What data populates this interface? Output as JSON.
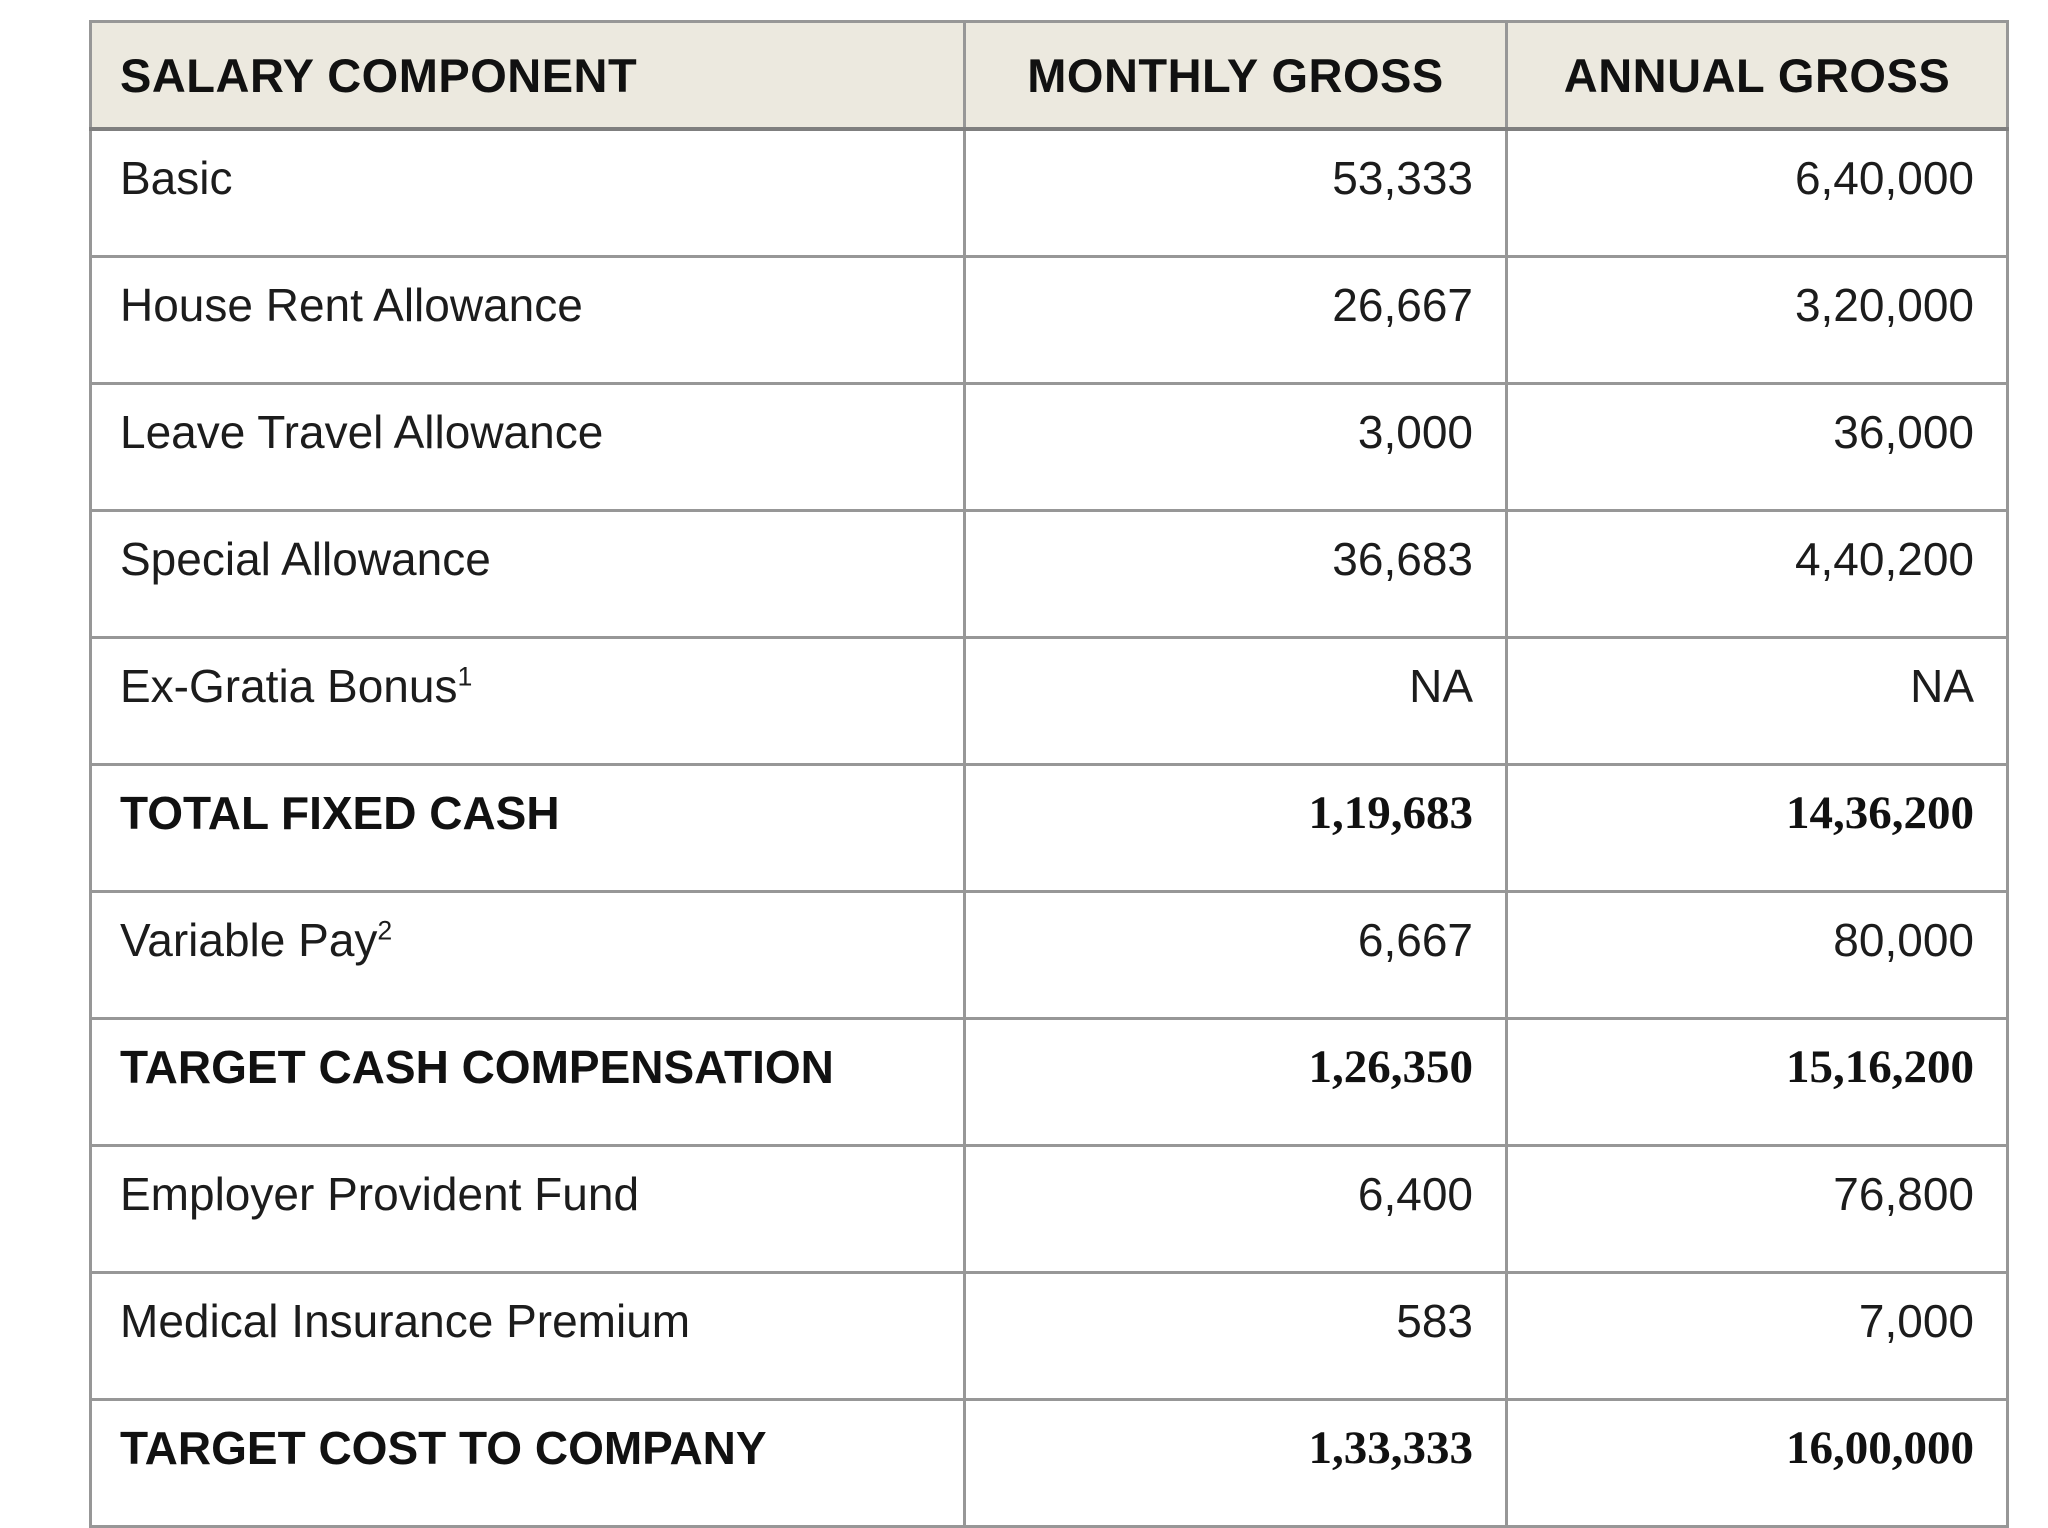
{
  "table": {
    "columns": [
      {
        "key": "component",
        "label": "SALARY COMPONENT"
      },
      {
        "key": "monthly",
        "label": "MONTHLY GROSS"
      },
      {
        "key": "annual",
        "label": "ANNUAL GROSS"
      }
    ],
    "rows": [
      {
        "component": "Basic",
        "sup": "",
        "monthly": "53,333",
        "annual": "6,40,000",
        "bold": false
      },
      {
        "component": "House Rent Allowance",
        "sup": "",
        "monthly": "26,667",
        "annual": "3,20,000",
        "bold": false
      },
      {
        "component": "Leave Travel Allowance",
        "sup": "",
        "monthly": "3,000",
        "annual": "36,000",
        "bold": false
      },
      {
        "component": "Special Allowance",
        "sup": "",
        "monthly": "36,683",
        "annual": "4,40,200",
        "bold": false
      },
      {
        "component": "Ex-Gratia Bonus",
        "sup": "1",
        "monthly": "NA",
        "annual": "NA",
        "bold": false
      },
      {
        "component": "TOTAL FIXED CASH",
        "sup": "",
        "monthly": "1,19,683",
        "annual": "14,36,200",
        "bold": true
      },
      {
        "component": "Variable Pay",
        "sup": "2",
        "monthly": "6,667",
        "annual": "80,000",
        "bold": false
      },
      {
        "component": "TARGET CASH COMPENSATION",
        "sup": "",
        "monthly": "1,26,350",
        "annual": "15,16,200",
        "bold": true
      },
      {
        "component": "Employer Provident Fund",
        "sup": "",
        "monthly": "6,400",
        "annual": "76,800",
        "bold": false
      },
      {
        "component": "Medical Insurance Premium",
        "sup": "",
        "monthly": "583",
        "annual": "7,000",
        "bold": false
      },
      {
        "component": "TARGET COST TO COMPANY",
        "sup": "",
        "monthly": "1,33,333",
        "annual": "16,00,000",
        "bold": true
      }
    ],
    "colors": {
      "header_bg": "#ece9df",
      "border": "#979797",
      "outer_border": "#7f7f7f",
      "text": "#1c1c1c",
      "bold_text": "#111111",
      "row_bg": "#ffffff",
      "page_bg": "#ffffff"
    }
  }
}
